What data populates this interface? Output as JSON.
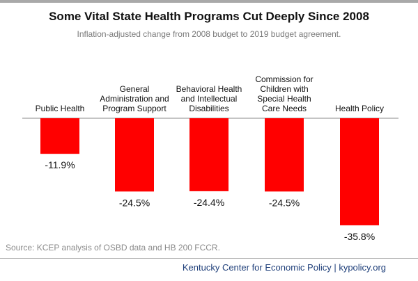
{
  "chart_data": {
    "type": "bar",
    "title": "Some Vital State Health Programs Cut Deeply Since 2008",
    "subtitle": "Inflation-adjusted change from 2008 budget to 2019 budget agreement.",
    "categories": [
      "Public Health",
      "General Administration and Program Support",
      "Behavioral Health and Intellectual Disabilities",
      "Commission for Children with Special Health Care Needs",
      "Health Policy"
    ],
    "category_lines": [
      [
        "Public Health"
      ],
      [
        "General",
        "Administration and",
        "Program Support"
      ],
      [
        "Behavioral Health",
        "and Intellectual",
        "Disabilities"
      ],
      [
        "Commission for",
        "Children with",
        "Special Health",
        "Care Needs"
      ],
      [
        "Health Policy"
      ]
    ],
    "values": [
      -11.9,
      -24.5,
      -24.4,
      -24.5,
      -35.8
    ],
    "data_labels": [
      "-11.9%",
      "-24.5%",
      "-24.4%",
      "-24.5%",
      "-35.8%"
    ],
    "unit": "%",
    "ylim": [
      -40,
      0
    ],
    "grid": false,
    "legend": "none",
    "bar_color": "#ff0000"
  },
  "source": "Source: KCEP analysis of OSBD data and HB 200 FCCR.",
  "footer": "Kentucky Center for Economic Policy | kypolicy.org",
  "colors": {
    "bar": "#ff0000",
    "footer_text": "#1f3f7a",
    "rule": "#a9a9a9"
  }
}
